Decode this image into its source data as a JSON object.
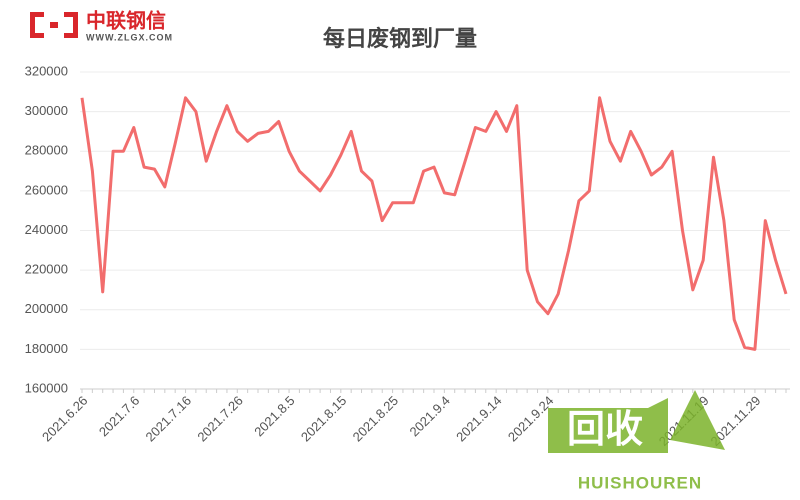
{
  "logo": {
    "name": "中联钢信",
    "url": "WWW.ZLGX.COM"
  },
  "watermark": {
    "text": "回收",
    "subtext": "HUISHOUREN"
  },
  "chart_data": {
    "type": "line",
    "title": "每日废钢到厂量",
    "categories": [
      "2021.6.26",
      null,
      null,
      null,
      null,
      "2021.7.6",
      null,
      null,
      null,
      null,
      "2021.7.16",
      null,
      null,
      null,
      null,
      "2021.7.26",
      null,
      null,
      null,
      null,
      "2021.8.5",
      null,
      null,
      null,
      null,
      "2021.8.15",
      null,
      null,
      null,
      null,
      "2021.8.25",
      null,
      null,
      null,
      null,
      "2021.9.4",
      null,
      null,
      null,
      null,
      "2021.9.14",
      null,
      null,
      null,
      null,
      "2021.9.24",
      null,
      null,
      null,
      null,
      null,
      null,
      null,
      null,
      null,
      null,
      null,
      null,
      null,
      null,
      "2021.11.19",
      null,
      null,
      null,
      null,
      "2021.11.29",
      null,
      null,
      null
    ],
    "series": [
      {
        "name": "每日废钢到厂量",
        "color": "#f26d6d",
        "values": [
          307000,
          270000,
          209000,
          280000,
          280000,
          292000,
          272000,
          271000,
          262000,
          284000,
          307000,
          300000,
          275000,
          290000,
          303000,
          290000,
          285000,
          289000,
          290000,
          295000,
          280000,
          270000,
          265000,
          260000,
          268000,
          278000,
          290000,
          270000,
          265000,
          245000,
          254000,
          254000,
          254000,
          270000,
          272000,
          259000,
          258000,
          275000,
          292000,
          290000,
          300000,
          290000,
          303000,
          220000,
          204000,
          198000,
          208000,
          230000,
          255000,
          260000,
          307000,
          285000,
          275000,
          290000,
          280000,
          268000,
          272000,
          280000,
          240000,
          210000,
          225000,
          277000,
          245000,
          195000,
          181000,
          180000,
          245000,
          225000,
          208000
        ]
      }
    ],
    "ylim": [
      160000,
      320000
    ],
    "yticks": [
      160000,
      180000,
      200000,
      220000,
      240000,
      260000,
      280000,
      300000,
      320000
    ],
    "grid": true
  }
}
